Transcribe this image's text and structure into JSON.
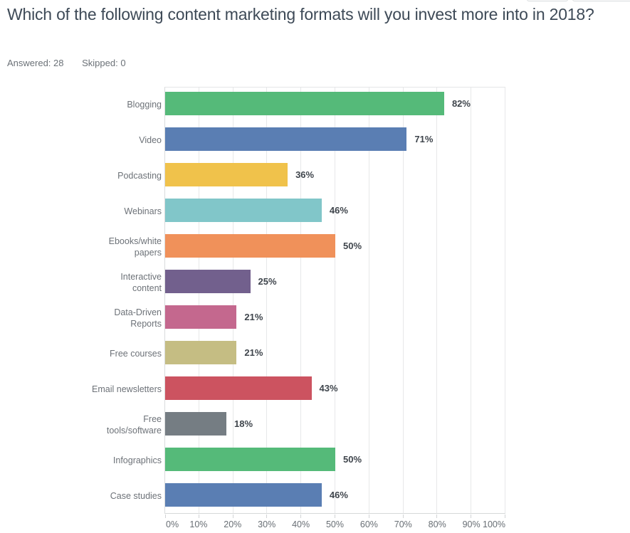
{
  "header": {
    "title": "Which of the following content marketing formats will you invest more into in 2018?",
    "answered": "Answered: 28",
    "skipped": "Skipped: 0"
  },
  "toolbar": {
    "cropped_buttons": 2
  },
  "chart_data": {
    "type": "bar",
    "orientation": "horizontal",
    "title": "Which of the following content marketing formats will you invest more into in 2018?",
    "categories": [
      "Blogging",
      "Video",
      "Podcasting",
      "Webinars",
      "Ebooks/white papers",
      "Interactive content",
      "Data-Driven Reports",
      "Free courses",
      "Email newsletters",
      "Free tools/software",
      "Infographics",
      "Case studies"
    ],
    "values": [
      82,
      71,
      36,
      46,
      50,
      25,
      21,
      21,
      43,
      18,
      50,
      46
    ],
    "value_labels": [
      "82%",
      "71%",
      "36%",
      "46%",
      "50%",
      "25%",
      "21%",
      "21%",
      "43%",
      "18%",
      "50%",
      "46%"
    ],
    "bar_colors": [
      "#55ba79",
      "#5a7eb3",
      "#f0c24b",
      "#81c6c9",
      "#f0915a",
      "#72608d",
      "#c4688e",
      "#c5bd83",
      "#cc5360",
      "#757d83",
      "#55ba79",
      "#5a7eb3"
    ],
    "x_tick_labels": [
      "0%",
      "10%",
      "20%",
      "30%",
      "40%",
      "50%",
      "60%",
      "70%",
      "80%",
      "90%",
      "100%"
    ],
    "xlim": [
      0,
      100
    ],
    "grid": true,
    "legend": "none"
  }
}
